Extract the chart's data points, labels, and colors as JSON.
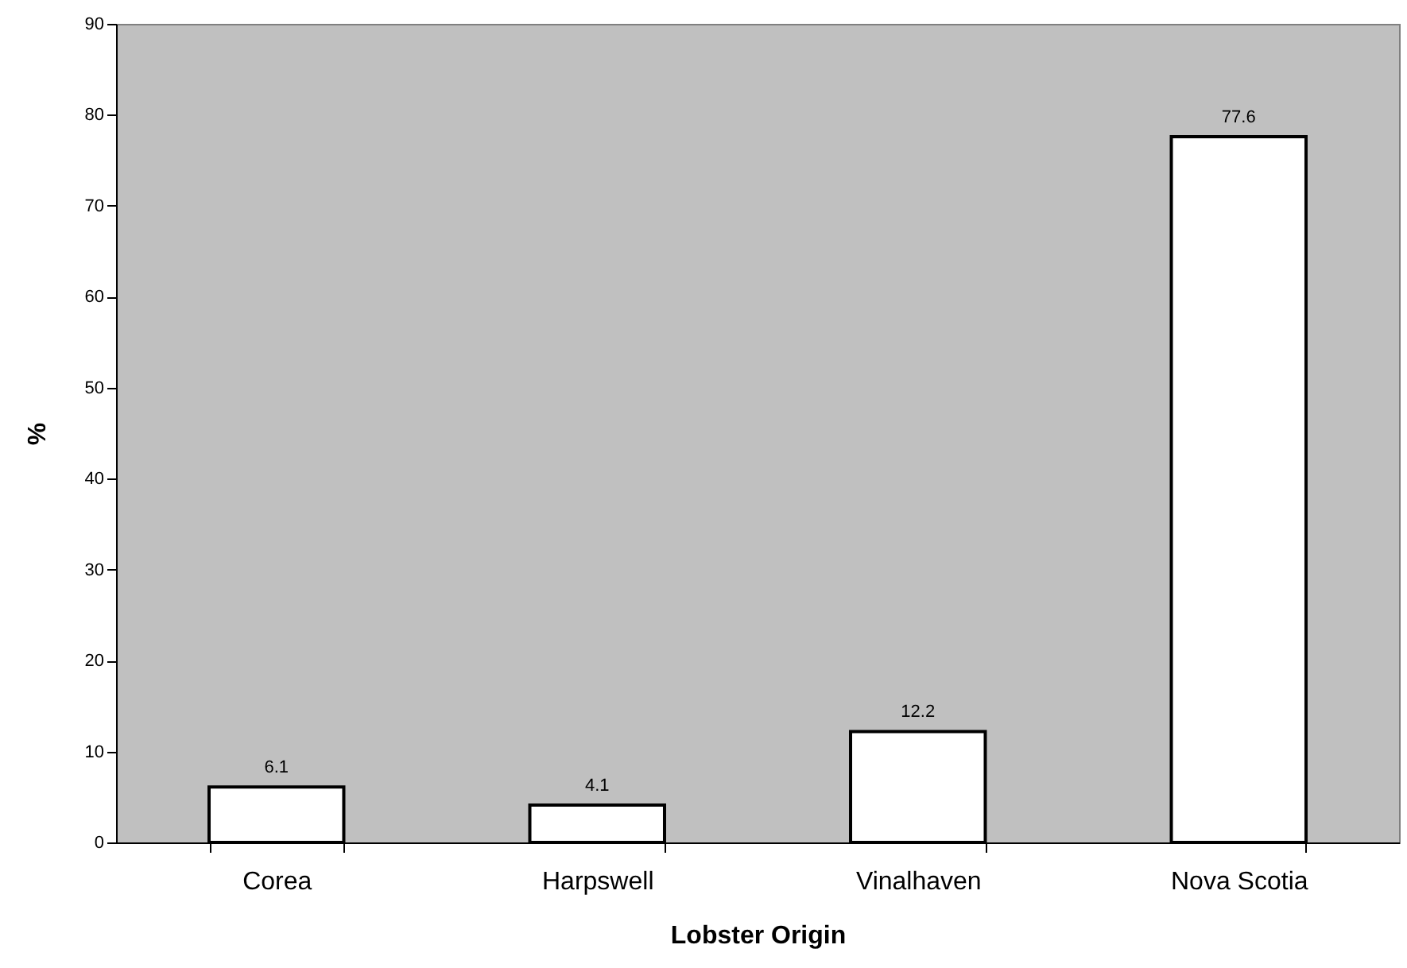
{
  "chart_data": {
    "type": "bar",
    "xlabel": "Lobster Origin",
    "ylabel": "%",
    "categories": [
      "Corea",
      "Harpswell",
      "Vinalhaven",
      "Nova Scotia"
    ],
    "values": [
      6.1,
      4.1,
      12.2,
      77.6
    ],
    "color": "#ffffff",
    "ylim": [
      0,
      90
    ],
    "yticks": [
      0,
      10,
      20,
      30,
      40,
      50,
      60,
      70,
      80,
      90
    ],
    "data_labels": true
  }
}
